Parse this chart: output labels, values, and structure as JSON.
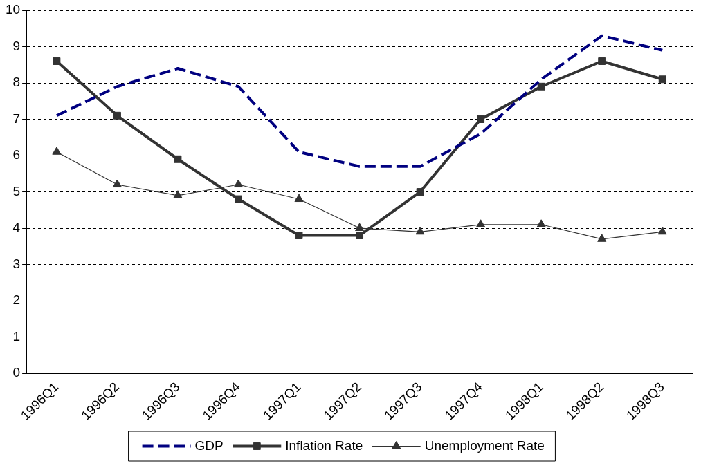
{
  "chart_data": {
    "type": "line",
    "categories": [
      "1996Q1",
      "1996Q2",
      "1996Q3",
      "1996Q4",
      "1997Q1",
      "1997Q2",
      "1997Q3",
      "1997Q4",
      "1998Q1",
      "1998Q2",
      "1998Q3"
    ],
    "series": [
      {
        "name": "GDP",
        "color": "#000080",
        "values": [
          7.1,
          7.9,
          8.4,
          7.9,
          6.1,
          5.7,
          5.7,
          6.6,
          8.1,
          9.3,
          8.9
        ],
        "marker": "none",
        "line_style": "dashed"
      },
      {
        "name": "Inflation Rate",
        "color": "#333333",
        "values": [
          8.6,
          7.1,
          5.9,
          4.8,
          3.8,
          3.8,
          5.0,
          7.0,
          7.9,
          8.6,
          8.1
        ],
        "marker": "square",
        "line_style": "solid"
      },
      {
        "name": "Unemployment Rate",
        "color": "#333333",
        "values": [
          6.1,
          5.2,
          4.9,
          5.2,
          4.8,
          4.0,
          3.9,
          4.1,
          4.1,
          3.7,
          3.9
        ],
        "marker": "triangle",
        "line_style": "solid"
      }
    ],
    "ylim": [
      0,
      10
    ],
    "yticks": [
      0,
      1,
      2,
      3,
      4,
      5,
      6,
      7,
      8,
      9,
      10
    ],
    "grid": "y",
    "legend": "bottom"
  }
}
